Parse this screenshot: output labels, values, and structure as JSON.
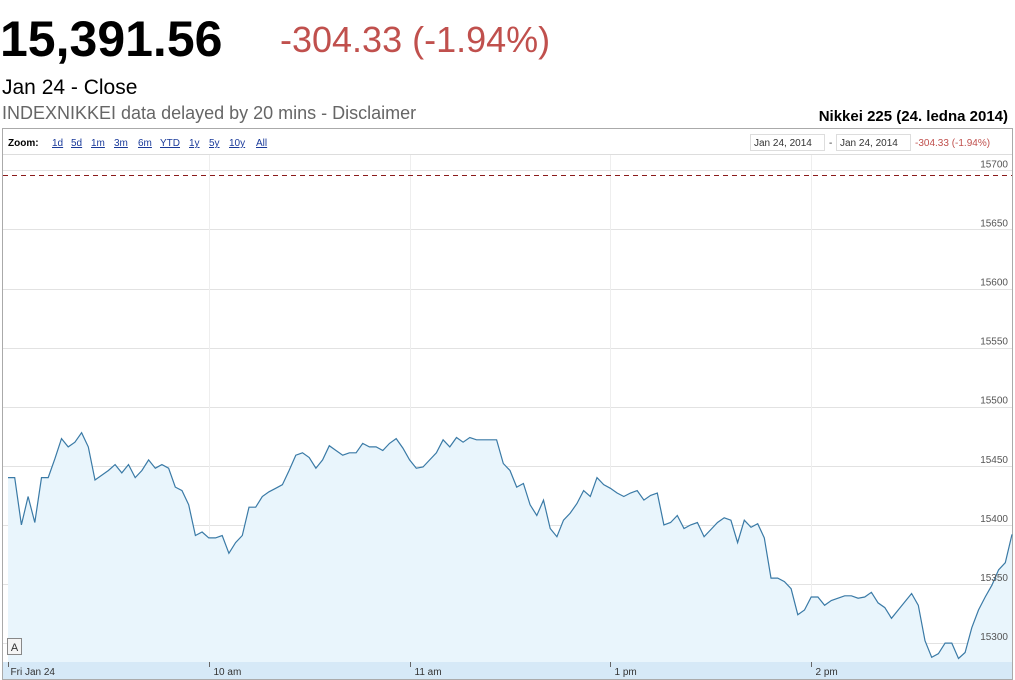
{
  "header": {
    "price": "15,391.56",
    "change": "-304.33 (-1.94%)",
    "date": "Jan 24 - Close",
    "source": "INDEXNIKKEI data delayed by 20 mins - Disclaimer"
  },
  "toolbar": {
    "zoom_label": "Zoom:",
    "zoom_options": [
      "1d",
      "5d",
      "1m",
      "3m",
      "6m",
      "YTD",
      "1y",
      "5y",
      "10y",
      "All"
    ],
    "range_start": "Jan 24, 2014",
    "range_separator": "-",
    "range_end": "Jan 24, 2014",
    "range_change": "-304.33 (-1.94%)"
  },
  "chart_data": {
    "type": "area",
    "title": "Nikkei 225 (24. ledna 2014)",
    "flag": "A",
    "color": "#3a7aa6",
    "fill": "#e9f5fc",
    "x": [
      0,
      2,
      4,
      6,
      8,
      10,
      12,
      14,
      16,
      18,
      20,
      22,
      24,
      26,
      28,
      30,
      32,
      34,
      36,
      38,
      40,
      42,
      44,
      46,
      48,
      50,
      52,
      54,
      56,
      58,
      60,
      62,
      64,
      66,
      68,
      70,
      72,
      74,
      76,
      78,
      80,
      82,
      84,
      86,
      88,
      90,
      92,
      94,
      96,
      98,
      100,
      102,
      104,
      106,
      108,
      110,
      112,
      114,
      116,
      118,
      120,
      122,
      124,
      126,
      128,
      130,
      132,
      134,
      136,
      138,
      140,
      142,
      144,
      146,
      148,
      150,
      152,
      154,
      156,
      158,
      160,
      162,
      164,
      166,
      168,
      170,
      172,
      174,
      176,
      178,
      180,
      182,
      184,
      186,
      188,
      190,
      192,
      194,
      196,
      198,
      200,
      202,
      204,
      206,
      208,
      210,
      212,
      214,
      216,
      218,
      220,
      222,
      224,
      226,
      228,
      230,
      232,
      234,
      236,
      238,
      240,
      242,
      244,
      246,
      248,
      250,
      252,
      254,
      256,
      258,
      260,
      262,
      264,
      266,
      268,
      270,
      272,
      274,
      276,
      278,
      280,
      282,
      284,
      286,
      288,
      290,
      292,
      294,
      296,
      298,
      300
    ],
    "values": [
      15440,
      15440,
      15400,
      15424,
      15402,
      15440,
      15440,
      15456,
      15473,
      15466,
      15470,
      15478,
      15466,
      15438,
      15442,
      15446,
      15451,
      15444,
      15451,
      15440,
      15446,
      15455,
      15448,
      15451,
      15448,
      15432,
      15429,
      15417,
      15391,
      15394,
      15389,
      15389,
      15391,
      15376,
      15385,
      15391,
      15415,
      15415,
      15424,
      15428,
      15431,
      15434,
      15446,
      15459,
      15461,
      15457,
      15448,
      15455,
      15467,
      15463,
      15459,
      15461,
      15461,
      15469,
      15466,
      15466,
      15463,
      15469,
      15473,
      15465,
      15455,
      15448,
      15449,
      15455,
      15461,
      15472,
      15466,
      15474,
      15470,
      15474,
      15472,
      15472,
      15472,
      15472,
      15452,
      15446,
      15432,
      15435,
      15417,
      15408,
      15421,
      15397,
      15390,
      15404,
      15410,
      15418,
      15429,
      15424,
      15440,
      15434,
      15431,
      15427,
      15424,
      15427,
      15429,
      15421,
      15425,
      15427,
      15400,
      15402,
      15408,
      15397,
      15400,
      15402,
      15390,
      15396,
      15402,
      15406,
      15404,
      15385,
      15404,
      15398,
      15401,
      15389,
      15355,
      15355,
      15352,
      15346,
      15324,
      15328,
      15339,
      15339,
      15332,
      15336,
      15338,
      15340,
      15340,
      15338,
      15339,
      15343,
      15334,
      15330,
      15321,
      15328,
      15335,
      15342,
      15332,
      15302,
      15288,
      15291,
      15300,
      15300,
      15287,
      15292,
      15313,
      15328,
      15339,
      15349,
      15362,
      15368,
      15392
    ],
    "previous_close": 15695.89,
    "previous_close_color": "#8b1a1a",
    "xlim": [
      0,
      300
    ],
    "xticks": [
      {
        "value": 0,
        "label": "Fri Jan 24"
      },
      {
        "value": 60,
        "label": "10 am"
      },
      {
        "value": 120,
        "label": "11 am"
      },
      {
        "value": 180,
        "label": "1 pm"
      },
      {
        "value": 240,
        "label": "2 pm"
      }
    ],
    "ylim": [
      15284,
      15713
    ],
    "yticks": [
      15300,
      15350,
      15400,
      15450,
      15500,
      15550,
      15600,
      15650,
      15700
    ],
    "grid": true
  }
}
